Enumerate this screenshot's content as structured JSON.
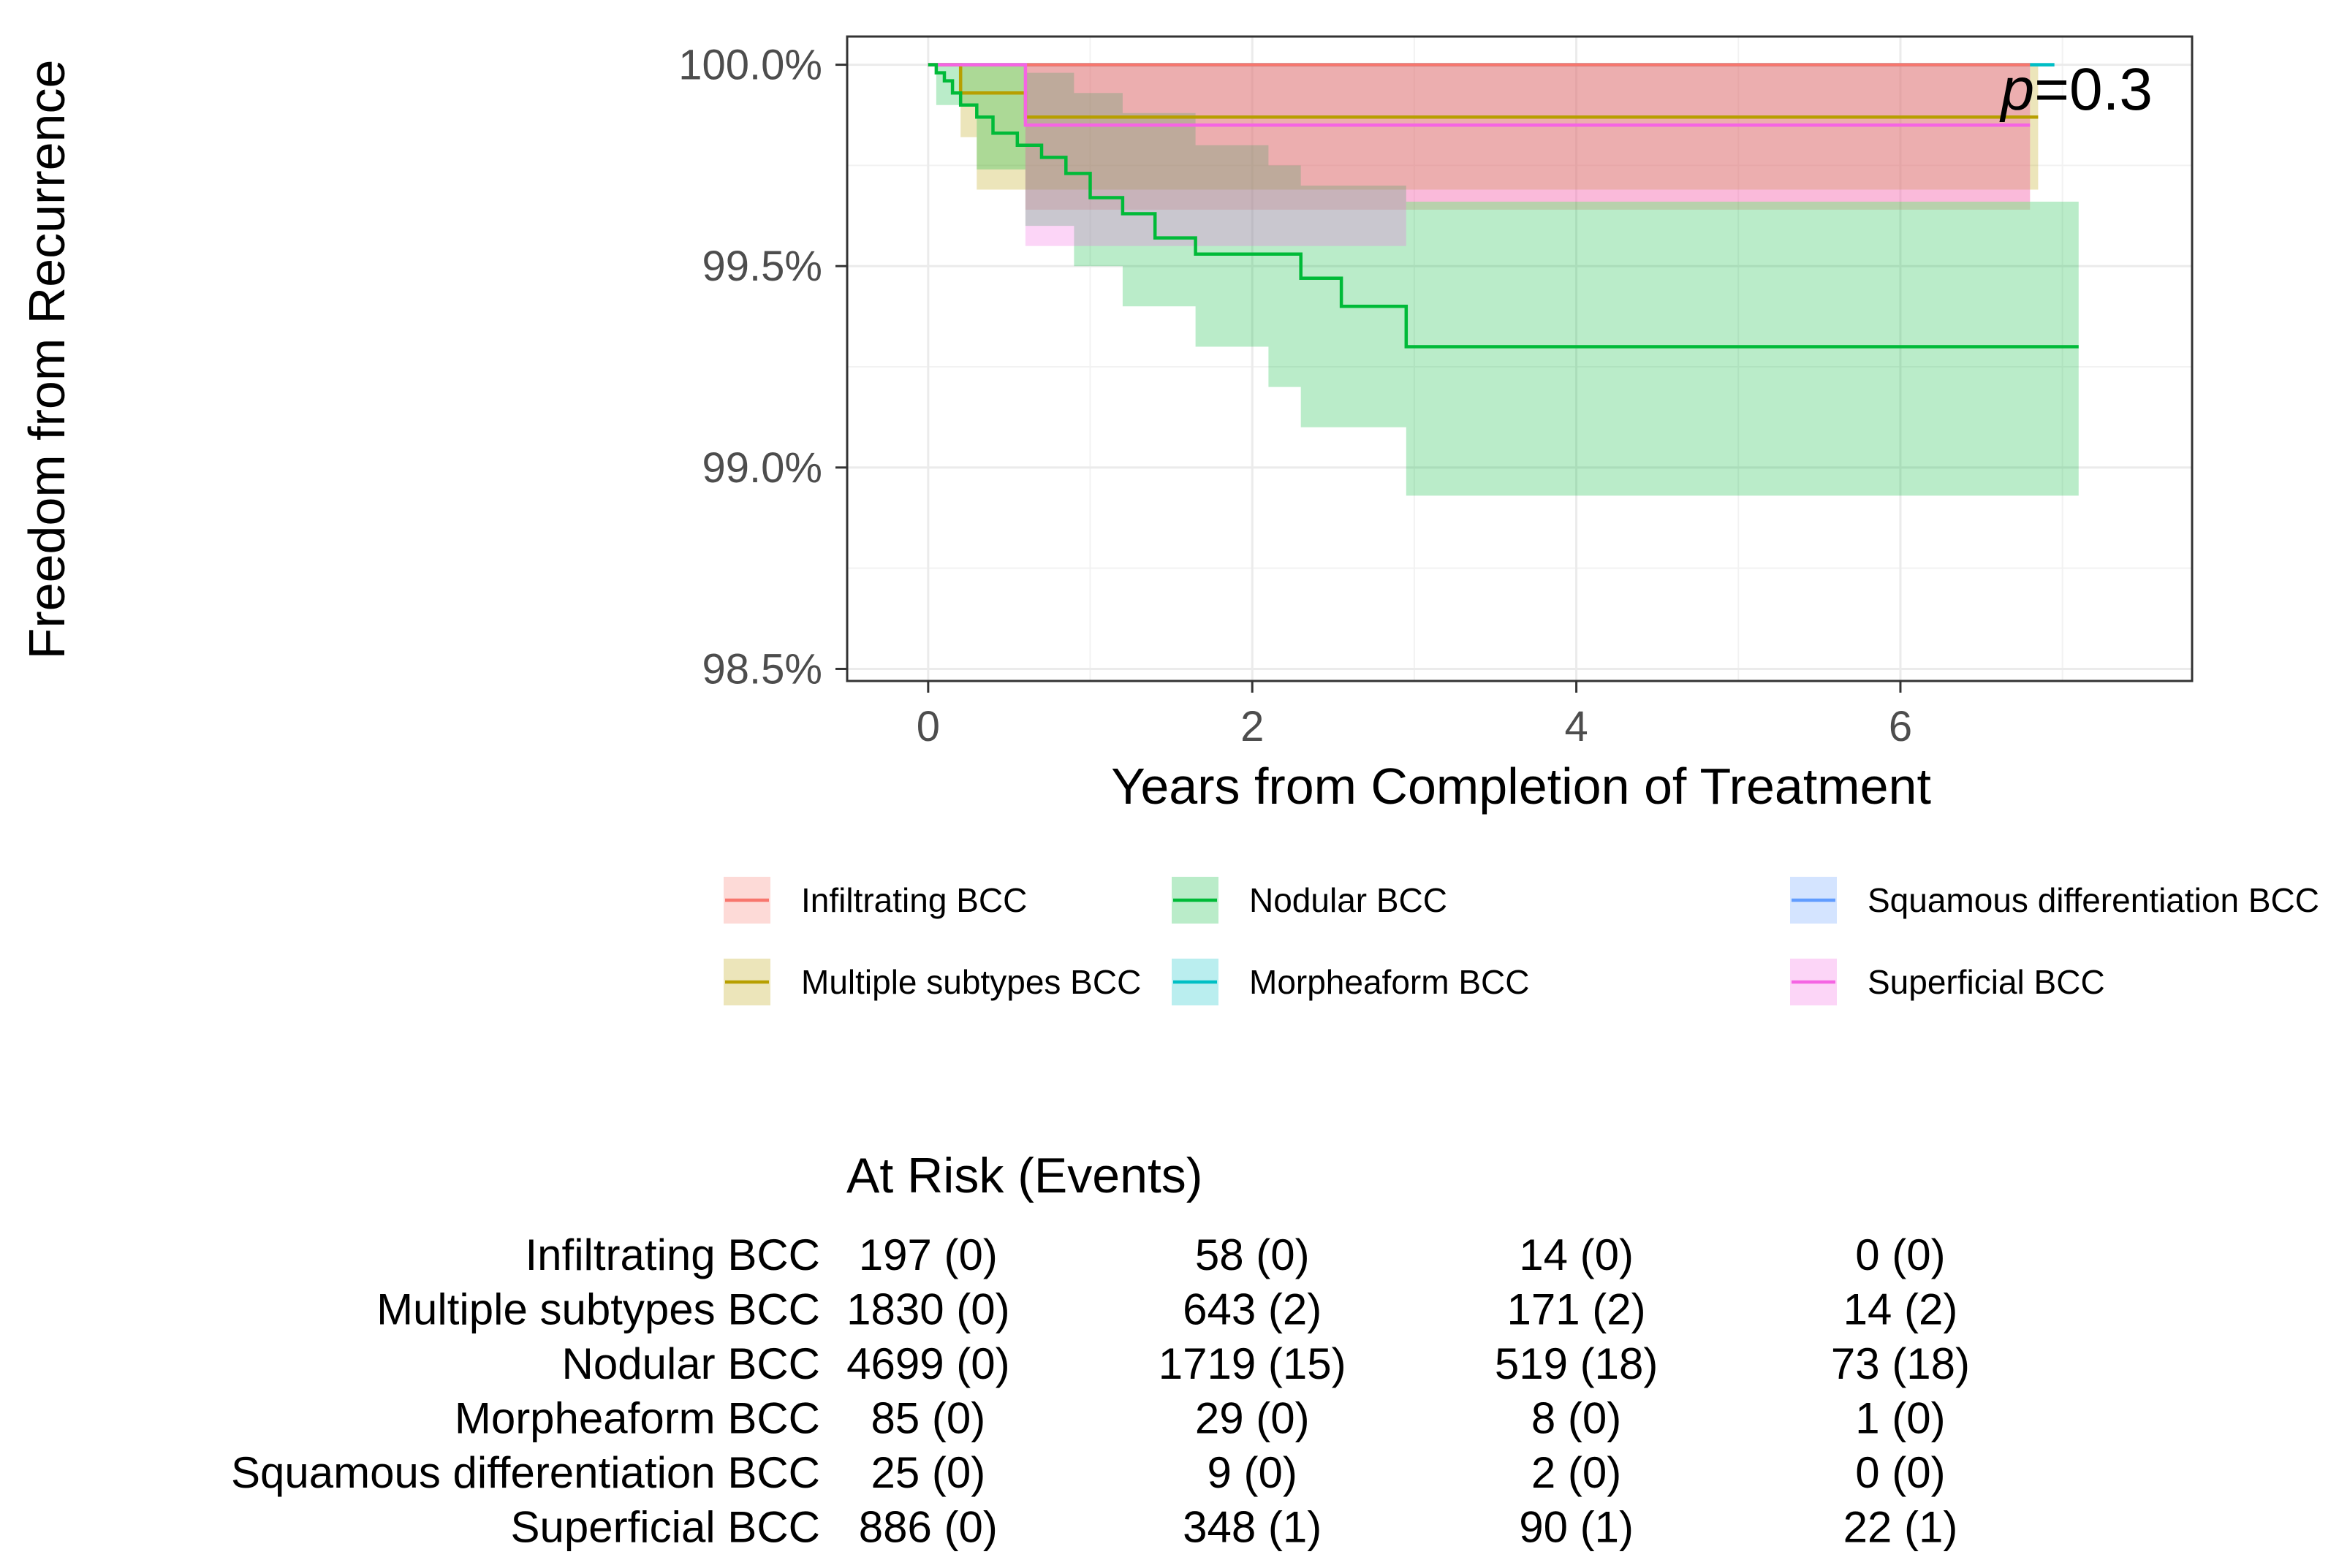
{
  "chart_data": {
    "type": "line",
    "subtype": "kaplan-meier",
    "ylabel": "Freedom from Recurrence",
    "xlabel": "Years from Completion of Treatment",
    "xlim": [
      -0.5,
      7.8
    ],
    "ylim": [
      98.47,
      100.07
    ],
    "x_ticks": [
      0,
      2,
      4,
      6
    ],
    "x_tick_labels": [
      "0",
      "2",
      "4",
      "6"
    ],
    "y_ticks": [
      98.5,
      99.0,
      99.5,
      100.0
    ],
    "y_tick_labels": [
      "98.5%",
      "99.0%",
      "99.5%",
      "100.0%"
    ],
    "annotation": {
      "prefix": "p",
      "text": "=0.3"
    },
    "legend_position": "bottom",
    "series": [
      {
        "name": "Infiltrating BCC",
        "color": "#F8766D",
        "x": [
          0,
          6.8
        ],
        "y": [
          100.0,
          100.0
        ],
        "ci": [
          [
            0.6,
            99.64,
            100.0
          ],
          [
            6.8,
            99.64,
            100.0
          ]
        ]
      },
      {
        "name": "Multiple subtypes BCC",
        "color": "#B79F00",
        "x": [
          0,
          0.2,
          0.2,
          0.6,
          0.6,
          6.85
        ],
        "y": [
          100.0,
          100.0,
          99.93,
          99.93,
          99.87,
          99.87
        ],
        "ci": [
          [
            0.2,
            99.82,
            100.0
          ],
          [
            0.3,
            99.69,
            100.0
          ],
          [
            0.6,
            99.69,
            100.0
          ],
          [
            3.0,
            99.69,
            100.0
          ],
          [
            6.85,
            99.69,
            100.0
          ]
        ]
      },
      {
        "name": "Nodular BCC",
        "color": "#00BA38",
        "x": [
          0,
          0.05,
          0.1,
          0.15,
          0.2,
          0.3,
          0.4,
          0.55,
          0.7,
          0.85,
          1.0,
          1.2,
          1.4,
          1.65,
          2.1,
          2.3,
          2.55,
          2.95,
          7.1
        ],
        "y": [
          100.0,
          99.98,
          99.96,
          99.93,
          99.9,
          99.87,
          99.83,
          99.8,
          99.77,
          99.73,
          99.67,
          99.63,
          99.57,
          99.53,
          99.53,
          99.47,
          99.4,
          99.3,
          99.3
        ],
        "ci": [
          [
            0.05,
            99.9,
            100.0
          ],
          [
            0.3,
            99.74,
            100.0
          ],
          [
            0.6,
            99.6,
            99.98
          ],
          [
            0.9,
            99.5,
            99.93
          ],
          [
            1.2,
            99.4,
            99.88
          ],
          [
            1.65,
            99.3,
            99.8
          ],
          [
            2.1,
            99.2,
            99.75
          ],
          [
            2.3,
            99.1,
            99.7
          ],
          [
            2.95,
            98.93,
            99.66
          ],
          [
            7.1,
            98.93,
            99.66
          ]
        ]
      },
      {
        "name": "Morpheaform BCC",
        "color": "#00BFC4",
        "x": [
          0,
          6.95
        ],
        "y": [
          100.0,
          100.0
        ],
        "ci": []
      },
      {
        "name": "Squamous differentiation BCC",
        "color": "#619CFF",
        "x": [
          0,
          6.95
        ],
        "y": [
          100.0,
          100.0
        ],
        "ci": []
      },
      {
        "name": "Superficial BCC",
        "color": "#F564E3",
        "x": [
          0,
          0.6,
          0.6,
          6.8
        ],
        "y": [
          100.0,
          100.0,
          99.85,
          99.85
        ],
        "ci": [
          [
            0.6,
            99.55,
            100.0
          ],
          [
            2.95,
            99.66,
            100.0
          ],
          [
            6.8,
            99.66,
            100.0
          ]
        ]
      }
    ]
  },
  "risk_table": {
    "title": "At Risk (Events)",
    "rows": [
      {
        "label": "Infiltrating BCC",
        "cells": [
          "197 (0)",
          "58 (0)",
          "14 (0)",
          "0 (0)"
        ]
      },
      {
        "label": "Multiple subtypes BCC",
        "cells": [
          "1830 (0)",
          "643 (2)",
          "171 (2)",
          "14 (2)"
        ]
      },
      {
        "label": "Nodular BCC",
        "cells": [
          "4699 (0)",
          "1719 (15)",
          "519 (18)",
          "73 (18)"
        ]
      },
      {
        "label": "Morpheaform BCC",
        "cells": [
          "85 (0)",
          "29 (0)",
          "8 (0)",
          "1 (0)"
        ]
      },
      {
        "label": "Squamous differentiation BCC",
        "cells": [
          "25 (0)",
          "9 (0)",
          "2 (0)",
          "0 (0)"
        ]
      },
      {
        "label": "Superficial BCC",
        "cells": [
          "886 (0)",
          "348 (1)",
          "90 (1)",
          "22 (1)"
        ]
      }
    ]
  }
}
